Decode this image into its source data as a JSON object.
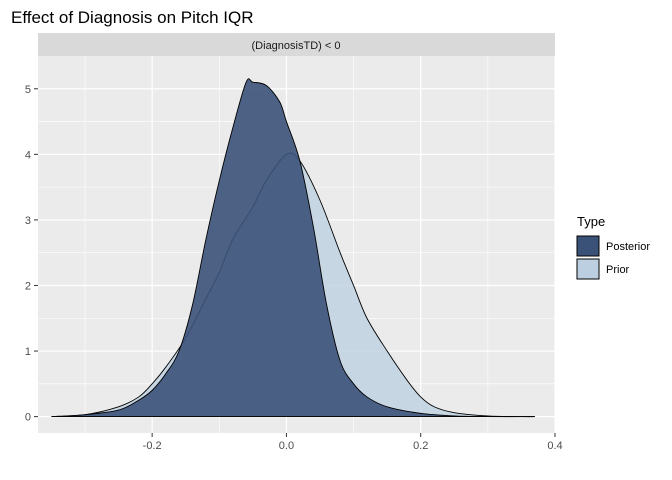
{
  "title": "Effect of Diagnosis on Pitch IQR",
  "colors": {
    "panel_bg": "#ebebeb",
    "strip_bg": "#d9d9d9",
    "grid_major": "#ffffff",
    "posterior_fill": "#3b5278",
    "prior_fill": "#bccfe0"
  },
  "chart_data": {
    "type": "area",
    "facet_label": "(DiagnosisTD) < 0",
    "xlabel": "",
    "ylabel": "",
    "xlim": [
      -0.37,
      0.4
    ],
    "ylim": [
      -0.25,
      5.5
    ],
    "x_ticks": [
      -0.2,
      0.0,
      0.2,
      0.4
    ],
    "x_tick_labels": [
      "-0.2",
      "0.0",
      "0.2",
      "0.4"
    ],
    "y_ticks": [
      0,
      1,
      2,
      3,
      4,
      5
    ],
    "y_tick_labels": [
      "0",
      "1",
      "2",
      "3",
      "4",
      "5"
    ],
    "grid": true,
    "legend": {
      "title": "Type",
      "position": "right",
      "entries": [
        "Posterior",
        "Prior"
      ]
    },
    "series": [
      {
        "name": "Prior",
        "x": [
          -0.35,
          -0.3,
          -0.25,
          -0.22,
          -0.2,
          -0.18,
          -0.15,
          -0.12,
          -0.1,
          -0.08,
          -0.05,
          -0.03,
          0.0,
          0.02,
          0.05,
          0.08,
          0.1,
          0.12,
          0.15,
          0.18,
          0.2,
          0.22,
          0.25,
          0.3,
          0.35,
          0.37
        ],
        "y": [
          0.0,
          0.03,
          0.15,
          0.3,
          0.5,
          0.75,
          1.2,
          1.8,
          2.2,
          2.7,
          3.2,
          3.6,
          4.0,
          3.9,
          3.3,
          2.5,
          2.0,
          1.5,
          1.0,
          0.55,
          0.3,
          0.15,
          0.06,
          0.01,
          0.0,
          0.0
        ]
      },
      {
        "name": "Posterior",
        "x": [
          -0.35,
          -0.3,
          -0.25,
          -0.22,
          -0.2,
          -0.18,
          -0.16,
          -0.14,
          -0.12,
          -0.1,
          -0.08,
          -0.06,
          -0.05,
          -0.03,
          -0.01,
          0.0,
          0.02,
          0.04,
          0.06,
          0.08,
          0.1,
          0.12,
          0.15,
          0.2,
          0.25,
          0.3,
          0.37
        ],
        "y": [
          0.0,
          0.03,
          0.1,
          0.25,
          0.4,
          0.65,
          1.0,
          1.7,
          2.7,
          3.6,
          4.4,
          5.1,
          5.1,
          5.05,
          4.8,
          4.5,
          3.9,
          2.9,
          1.7,
          0.85,
          0.5,
          0.3,
          0.15,
          0.05,
          0.01,
          0.0,
          0.0
        ]
      }
    ]
  }
}
